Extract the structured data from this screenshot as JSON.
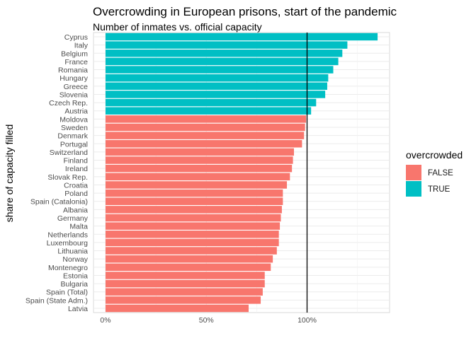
{
  "chart_data": {
    "type": "bar",
    "orientation": "horizontal",
    "title": "Overcrowding in European prisons, start of the pandemic",
    "subtitle": "Number of inmates vs. official capacity",
    "ylabel": "share of capacity filled",
    "xlabel": "",
    "xlim": [
      -0.05,
      1.42
    ],
    "xticks": [
      0,
      0.5,
      1.0
    ],
    "xtick_labels": [
      "0%",
      "50%",
      "100%"
    ],
    "reference_line": 1.0,
    "grid": true,
    "legend": {
      "title": "overcrowded",
      "position": "right",
      "entries": [
        {
          "label": "FALSE",
          "color": "#F8766D"
        },
        {
          "label": "TRUE",
          "color": "#00BFC4"
        }
      ]
    },
    "categories": [
      "Cyprus",
      "Italy",
      "Belgium",
      "France",
      "Romania",
      "Hungary",
      "Greece",
      "Slovenia",
      "Czech Rep.",
      "Austria",
      "Moldova",
      "Sweden",
      "Denmark",
      "Portugal",
      "Switzerland",
      "Finland",
      "Ireland",
      "Slovak Rep.",
      "Croatia",
      "Poland",
      "Spain (Catalonia)",
      "Albania",
      "Germany",
      "Malta",
      "Netherlands",
      "Luxembourg",
      "Lithuania",
      "Norway",
      "Montenegro",
      "Estonia",
      "Bulgaria",
      "Spain (Total)",
      "Spain (State Adm.)",
      "Latvia"
    ],
    "values": [
      1.35,
      1.2,
      1.175,
      1.155,
      1.13,
      1.105,
      1.1,
      1.09,
      1.045,
      1.02,
      0.995,
      0.99,
      0.985,
      0.975,
      0.935,
      0.93,
      0.925,
      0.915,
      0.9,
      0.88,
      0.88,
      0.875,
      0.87,
      0.865,
      0.86,
      0.86,
      0.85,
      0.83,
      0.82,
      0.79,
      0.79,
      0.78,
      0.77,
      0.71
    ],
    "overcrowded": [
      true,
      true,
      true,
      true,
      true,
      true,
      true,
      true,
      true,
      true,
      false,
      false,
      false,
      false,
      false,
      false,
      false,
      false,
      false,
      false,
      false,
      false,
      false,
      false,
      false,
      false,
      false,
      false,
      false,
      false,
      false,
      false,
      false,
      false
    ]
  }
}
